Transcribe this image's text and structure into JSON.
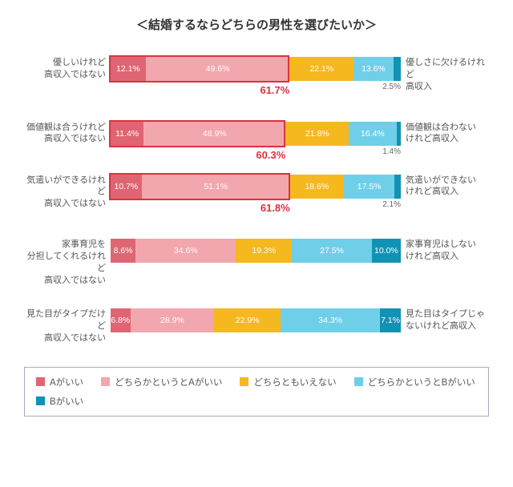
{
  "title": "＜結婚するならどちらの男性を選びたいか＞",
  "colors": {
    "a": "#e06573",
    "la": "#f2a6ae",
    "n": "#f6b81f",
    "lb": "#6fcfe8",
    "b": "#1192b5",
    "highlight": "#d9333f",
    "text_on_light": "#ffffff"
  },
  "legend": [
    {
      "key": "a",
      "label": "Aがいい"
    },
    {
      "key": "la",
      "label": "どちらかというとAがいい"
    },
    {
      "key": "n",
      "label": "どちらともいえない"
    },
    {
      "key": "lb",
      "label": "どちらかというとBがいい"
    },
    {
      "key": "b",
      "label": "Bがいい"
    }
  ],
  "rows": [
    {
      "left1": "優しいけれど",
      "left2": "高収入ではない",
      "right1": "優しさに欠けるけれど",
      "right2": "高収入",
      "vals": {
        "a": 12.1,
        "la": 49.6,
        "n": 22.1,
        "lb": 13.6,
        "b": 2.5
      },
      "highlight_sum": 61.7,
      "highlight": true
    },
    {
      "left1": "価値観は合うけれど",
      "left2": "高収入ではない",
      "right1": "価値観は合わない",
      "right2": "けれど高収入",
      "vals": {
        "a": 11.4,
        "la": 48.9,
        "n": 21.8,
        "lb": 16.4,
        "b": 1.4
      },
      "highlight_sum": 60.3,
      "highlight": true
    },
    {
      "left1": "気遣いができるけれど",
      "left2": "高収入ではない",
      "right1": "気遣いができない",
      "right2": "けれど高収入",
      "vals": {
        "a": 10.7,
        "la": 51.1,
        "n": 18.6,
        "lb": 17.5,
        "b": 2.1
      },
      "highlight_sum": 61.8,
      "highlight": true
    },
    {
      "left1": "家事育児を",
      "left2": "分担してくれるけれど",
      "left3": "高収入ではない",
      "right1": "家事育児はしない",
      "right2": "けれど高収入",
      "vals": {
        "a": 8.6,
        "la": 34.6,
        "n": 19.3,
        "lb": 27.5,
        "b": 10.0
      },
      "highlight": false
    },
    {
      "left1": "見た目がタイプだけど",
      "left2": "高収入ではない",
      "right1": "見た目はタイプじゃ",
      "right2": "ないけれど高収入",
      "vals": {
        "a": 6.8,
        "la": 28.9,
        "n": 22.9,
        "lb": 34.3,
        "b": 7.1
      },
      "highlight": false
    }
  ]
}
